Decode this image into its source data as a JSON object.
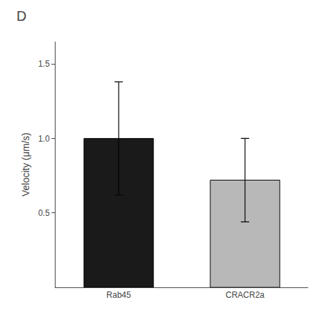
{
  "chart_data": {
    "type": "bar",
    "title": "D",
    "categories": [
      "Rab45",
      "CRACR2a"
    ],
    "values": [
      1.0,
      0.72
    ],
    "errors": [
      0.38,
      0.28
    ],
    "colors": [
      "#1a1a1a",
      "#b8b8b8"
    ],
    "ylabel": "Velocity (μm/s)",
    "ylim": [
      0,
      1.65
    ],
    "yticks": [
      0.5,
      {
        "value": 1.0,
        "label": "1.0"
      },
      1.5
    ],
    "grid": false
  }
}
